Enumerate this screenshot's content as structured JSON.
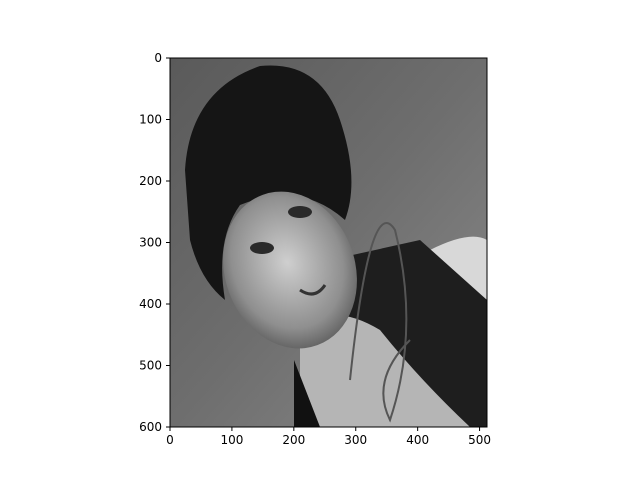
{
  "chart_data": {
    "type": "image",
    "xlim": [
      0,
      512
    ],
    "xticks": [
      0,
      100,
      200,
      300,
      400,
      500
    ],
    "ylim": [
      600,
      0
    ],
    "yticks": [
      0,
      100,
      200,
      300,
      400,
      500,
      600
    ]
  }
}
